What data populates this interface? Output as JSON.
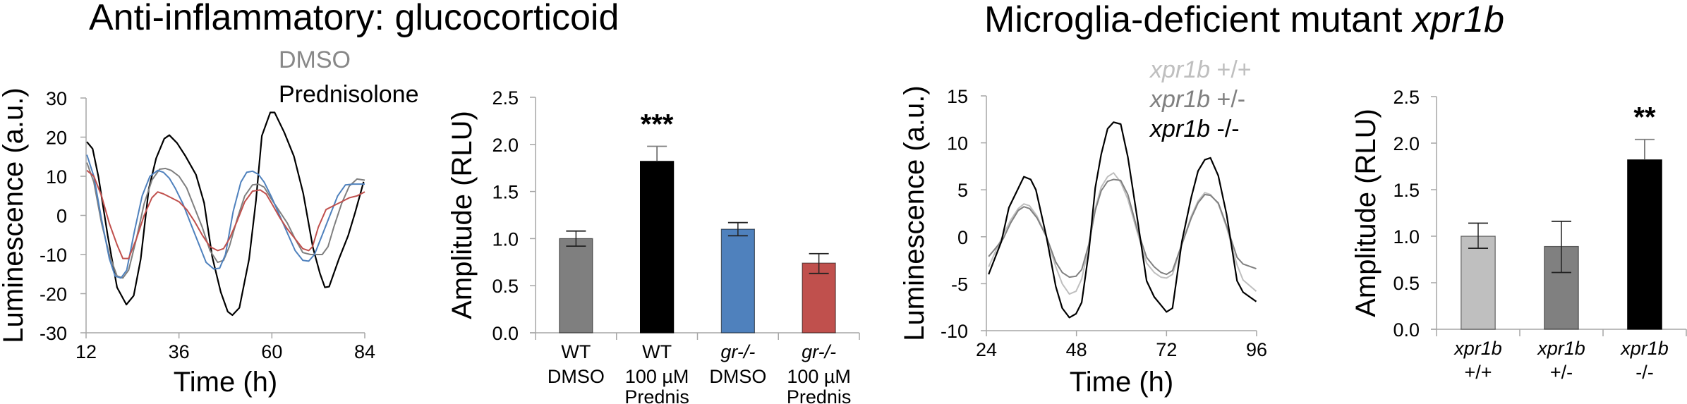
{
  "titles": {
    "left": "Anti-inflammatory: glucocorticoid",
    "right_prefix": "Microglia-deficient mutant ",
    "right_italic": "xpr1b"
  },
  "colors": {
    "dmso_gray": "#7f7f7f",
    "black": "#000000",
    "blue": "#4f81bd",
    "red": "#c0504d",
    "light_gray": "#bfbfbf",
    "mid_gray": "#808080",
    "axis": "#a6a6a6"
  },
  "chart_data": [
    {
      "type": "line",
      "title": "Anti-inflammatory: glucocorticoid",
      "xlabel": "Time (h)",
      "ylabel": "Luminescence (a.u.)",
      "xlim": [
        12,
        84
      ],
      "ylim": [
        -30,
        30
      ],
      "xticks": [
        "12",
        "36",
        "60",
        "84"
      ],
      "yticks": [
        "30",
        "20",
        "10",
        "0",
        "-10",
        "-20",
        "-30"
      ],
      "legend": [
        {
          "label": "DMSO",
          "color": "#888888"
        },
        {
          "label": "Prednisolone",
          "color": "#000000"
        }
      ],
      "legend_position": "top-right",
      "series": [
        {
          "name": "WT Prednisolone",
          "color": "#000000",
          "x": [
            12.2,
            13.7,
            15.2,
            17.6,
            20.0,
            22.4,
            24.3,
            26.1,
            28.2,
            30.1,
            32.2,
            33.5,
            35.5,
            37.6,
            40.4,
            42.5,
            44.6,
            46.8,
            48.6,
            49.8,
            51.6,
            54.1,
            55.9,
            57.4,
            59.6,
            60.7,
            63.2,
            65.7,
            68.1,
            70.6,
            72.4,
            73.7,
            74.8,
            77.3,
            79.7,
            81.5,
            83.7
          ],
          "y": [
            18.8,
            17.0,
            9.8,
            -5.2,
            -18.4,
            -22.8,
            -20.5,
            -11.2,
            6.8,
            14.6,
            19.6,
            20.5,
            18.5,
            15.3,
            10.4,
            3.2,
            -10.6,
            -19.6,
            -24.6,
            -25.5,
            -23.6,
            -11.2,
            3.8,
            20.3,
            26.3,
            26.3,
            21.2,
            15.1,
            5.6,
            -8.2,
            -14.8,
            -18.4,
            -18.2,
            -11.2,
            -5.2,
            0.7,
            8.6
          ]
        },
        {
          "name": "WT DMSO",
          "color": "#7f7f7f",
          "x": [
            12.2,
            14,
            16,
            18,
            20,
            21.5,
            23,
            25,
            27,
            29,
            31,
            32.5,
            34,
            36,
            38,
            40,
            42,
            44,
            46,
            47.5,
            49,
            51,
            53,
            55,
            56.5,
            58,
            60,
            62,
            64,
            66,
            68,
            70,
            71.5,
            73,
            74.5,
            76,
            78,
            80,
            82,
            84
          ],
          "y": [
            13.5,
            8.5,
            -2,
            -10,
            -15.5,
            -16,
            -14,
            -6,
            3,
            9,
            11.8,
            12,
            11.5,
            10,
            7,
            2,
            -3,
            -9,
            -12,
            -11.5,
            -8,
            -1,
            5,
            7.8,
            8,
            7.2,
            4,
            1,
            -2,
            -6,
            -9.5,
            -10,
            -10,
            -10,
            -8,
            -3,
            3,
            7.5,
            9.3,
            9
          ]
        },
        {
          "name": "gr-/- DMSO",
          "color": "#4f81bd",
          "x": [
            12.2,
            14,
            16,
            18,
            19.5,
            21,
            22.5,
            24.5,
            26.5,
            28.5,
            30.5,
            32,
            33.5,
            35,
            37,
            39,
            41,
            43,
            45,
            46.5,
            48,
            50,
            52,
            53.5,
            55,
            56.5,
            58,
            60,
            62,
            64,
            66,
            68,
            69.5,
            71,
            73,
            75,
            77,
            79,
            81,
            83,
            84
          ],
          "y": [
            15.5,
            10,
            -1,
            -11,
            -15.5,
            -16,
            -14,
            -4,
            5,
            10,
            11.5,
            11,
            9.5,
            7,
            3,
            -2,
            -7,
            -12,
            -13.7,
            -13.5,
            -10,
            1,
            8.5,
            11,
            11.3,
            10.5,
            8.5,
            4.5,
            0,
            -4.5,
            -9,
            -11.5,
            -11.7,
            -10,
            -5,
            0,
            5,
            7.8,
            8,
            8,
            8
          ]
        },
        {
          "name": "gr-/- 100 uM Prednis",
          "color": "#c0504d",
          "x": [
            12.2,
            14,
            16,
            18,
            20,
            21.5,
            23,
            25,
            27,
            29,
            30.5,
            32,
            34,
            36,
            38,
            40,
            42,
            44,
            46,
            47.5,
            49,
            51,
            53,
            55,
            57,
            58.5,
            60,
            62,
            64,
            66,
            68,
            69.5,
            70.5,
            72,
            74,
            76,
            78,
            80,
            82,
            84
          ],
          "y": [
            11.5,
            10,
            5,
            -2,
            -7.5,
            -11,
            -11,
            -6,
            0,
            4.5,
            6,
            5.5,
            4.5,
            3.5,
            1.5,
            -1.5,
            -5,
            -8,
            -9,
            -8.5,
            -6,
            -1.5,
            3.5,
            6.2,
            6.5,
            5.5,
            3,
            -0.5,
            -3.5,
            -6,
            -8.5,
            -9,
            -8,
            -3,
            1.5,
            2.5,
            3.5,
            4.5,
            5,
            6
          ]
        }
      ]
    },
    {
      "type": "bar",
      "ylabel": "Amplitude (RLU)",
      "ylim": [
        0,
        2.5
      ],
      "yticks": [
        "0.0",
        "0.5",
        "1.0",
        "1.5",
        "2.0",
        "2.5"
      ],
      "categories": [
        {
          "line1": "WT",
          "line1_italic": false,
          "line2": "DMSO",
          "line3": ""
        },
        {
          "line1": "WT",
          "line1_italic": false,
          "line2": "100 µM",
          "line3": "Prednis"
        },
        {
          "line1": "gr-/-",
          "line1_italic": true,
          "line2": "DMSO",
          "line3": ""
        },
        {
          "line1": "gr-/-",
          "line1_italic": true,
          "line2": "100 µM",
          "line3": "Prednis"
        }
      ],
      "values": [
        1.0,
        1.82,
        1.1,
        0.74
      ],
      "err_low": [
        0.92,
        1.82,
        1.03,
        0.63
      ],
      "err_high": [
        1.08,
        1.98,
        1.17,
        0.84
      ],
      "colors": [
        "#7f7f7f",
        "#000000",
        "#4f81bd",
        "#c0504d"
      ],
      "annotations": [
        {
          "category_index": 1,
          "text": "***"
        }
      ]
    },
    {
      "type": "line",
      "title": "Microglia-deficient mutant xpr1b",
      "xlabel": "Time (h)",
      "ylabel": "Luminescence (a.u.)",
      "xlim": [
        24,
        96
      ],
      "ylim": [
        -10,
        15
      ],
      "xticks": [
        "24",
        "48",
        "72",
        "96"
      ],
      "yticks": [
        "15",
        "10",
        "5",
        "0",
        "-5",
        "-10"
      ],
      "legend": [
        {
          "label_italic": "xpr1b",
          "label_suffix": " +/+",
          "color": "#bfbfbf"
        },
        {
          "label_italic": "xpr1b",
          "label_suffix": " +/-",
          "color": "#808080"
        },
        {
          "label_italic": "xpr1b",
          "label_suffix": " -/-",
          "color": "#000000"
        }
      ],
      "legend_position": "top-right",
      "series": [
        {
          "name": "xpr1b +/+",
          "color": "#bfbfbf",
          "x": [
            24.6,
            26.5,
            28.5,
            30.5,
            32.5,
            34,
            35.5,
            37.5,
            40,
            42.5,
            44.2,
            46.1,
            47.9,
            49.4,
            51.3,
            53,
            54.6,
            56.3,
            57.9,
            59.8,
            61.7,
            64.2,
            66.7,
            68.7,
            70.5,
            72,
            73.6,
            76.1,
            78.6,
            80.4,
            82.2,
            83.7,
            85.8,
            88,
            90.8,
            92.4,
            95.9
          ],
          "y": [
            -3.2,
            -1.5,
            0.2,
            1.8,
            3.0,
            3.5,
            3.3,
            2.2,
            0,
            -3.2,
            -5.0,
            -6.1,
            -5.8,
            -4.5,
            -1.0,
            3.0,
            5.3,
            6.4,
            6.8,
            5.8,
            4.0,
            0.5,
            -2.8,
            -3.8,
            -4.3,
            -4.4,
            -4.0,
            -0.8,
            2.2,
            3.8,
            4.7,
            4.5,
            3.5,
            1.0,
            -3.0,
            -4.6,
            -5.8
          ]
        },
        {
          "name": "xpr1b +/-",
          "color": "#808080",
          "x": [
            24.6,
            26.5,
            28.5,
            30.5,
            32.5,
            34,
            35.5,
            37.5,
            40,
            42.5,
            44.2,
            46.1,
            47.9,
            49.4,
            51.3,
            53,
            54.6,
            56.3,
            57.9,
            59.8,
            61.7,
            64.2,
            66.7,
            68.7,
            70.5,
            72,
            73.6,
            76.1,
            78.6,
            80.4,
            82.2,
            83.7,
            85.8,
            88,
            90.8,
            92.4,
            95.9
          ],
          "y": [
            -2.1,
            -1.2,
            -0.2,
            1.5,
            2.8,
            3.2,
            3.0,
            2.0,
            0,
            -2.7,
            -3.8,
            -4.3,
            -4.2,
            -3.5,
            -0.8,
            2.8,
            4.9,
            5.9,
            6.1,
            6.0,
            4.5,
            0.8,
            -2.2,
            -3.2,
            -3.8,
            -4.0,
            -3.6,
            -0.8,
            2.0,
            3.6,
            4.5,
            4.4,
            3.6,
            1.2,
            -2.2,
            -2.9,
            -3.4
          ]
        },
        {
          "name": "xpr1b -/-",
          "color": "#000000",
          "x": [
            24.6,
            28,
            30,
            34,
            35.8,
            37.2,
            40,
            42.5,
            44.2,
            46.1,
            47.9,
            49.4,
            51.3,
            53,
            54.6,
            56.3,
            57.9,
            59.8,
            61.7,
            64.2,
            66.7,
            68.7,
            72,
            73.6,
            76.1,
            78.6,
            80.4,
            82.2,
            83.7,
            85.8,
            88,
            90.8,
            92.4,
            95.9
          ],
          "y": [
            -4.0,
            -0.5,
            3.1,
            6.4,
            6.1,
            5.0,
            0.0,
            -5.3,
            -7.6,
            -8.6,
            -8.2,
            -7.0,
            -1.6,
            5.2,
            8.8,
            11.5,
            12.2,
            12.0,
            8.5,
            2.0,
            -4.7,
            -6.4,
            -8.0,
            -7.6,
            -0.5,
            4.2,
            7.0,
            8.2,
            8.4,
            6.5,
            2.4,
            -4.7,
            -5.9,
            -6.9
          ]
        }
      ]
    },
    {
      "type": "bar",
      "ylabel": "Amplitude (RLU)",
      "ylim": [
        0,
        2.5
      ],
      "yticks": [
        "0.0",
        "0.5",
        "1.0",
        "1.5",
        "2.0",
        "2.5"
      ],
      "categories": [
        {
          "line1": "xpr1b",
          "line1_italic": true,
          "line2": "+/+",
          "line3": ""
        },
        {
          "line1": "xpr1b",
          "line1_italic": true,
          "line2": "+/-",
          "line3": ""
        },
        {
          "line1": "xpr1b",
          "line1_italic": true,
          "line2": "-/-",
          "line3": ""
        }
      ],
      "values": [
        1.0,
        0.89,
        1.82
      ],
      "err_low": [
        0.87,
        0.61,
        1.82
      ],
      "err_high": [
        1.14,
        1.16,
        2.04
      ],
      "colors": [
        "#bfbfbf",
        "#808080",
        "#000000"
      ],
      "annotations": [
        {
          "category_index": 2,
          "text": "**"
        }
      ]
    }
  ]
}
